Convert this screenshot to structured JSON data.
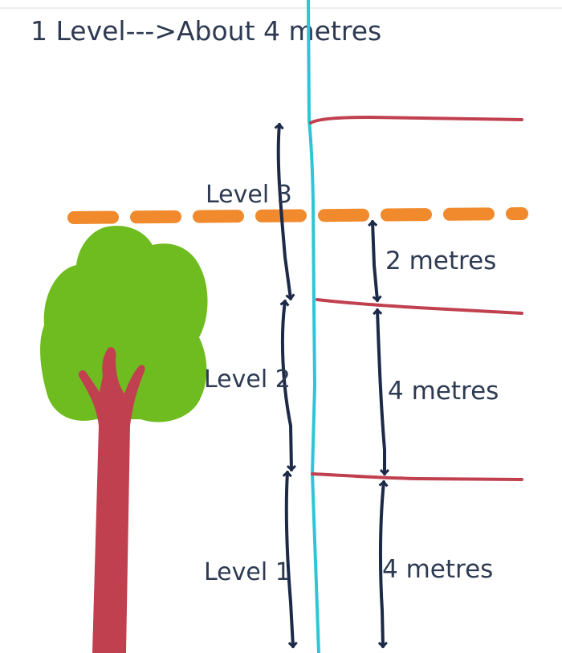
{
  "title": "1 Level--->About 4 metres",
  "levels": [
    {
      "label": "Level 3"
    },
    {
      "label": "Level 2"
    },
    {
      "label": "Level 1"
    }
  ],
  "measurements": [
    {
      "label": "2 metres"
    },
    {
      "label": "4 metres"
    },
    {
      "label": "4 metres"
    }
  ],
  "colors": {
    "title_text": "#2d3a52",
    "building_edge": "#2ec6d6",
    "floor_lines": "#c0404f",
    "arrows": "#1c2a48",
    "tree_top_line": "#f08a2c",
    "tree_foliage": "#6ebc1f",
    "tree_trunk": "#c0404f"
  }
}
